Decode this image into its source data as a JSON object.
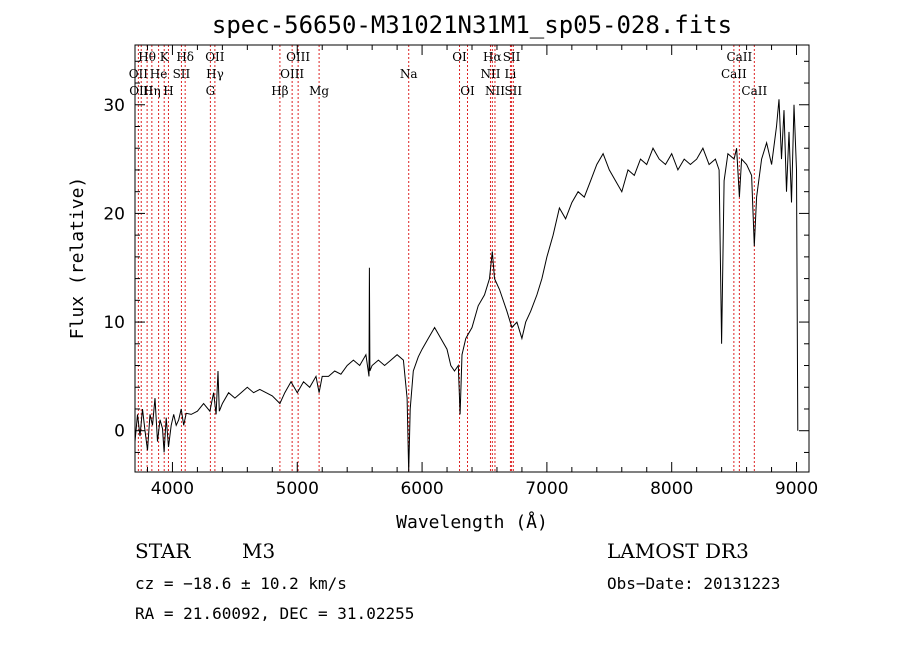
{
  "chart_data": {
    "type": "line",
    "title": "spec-56650-M31021N31M1_sp05-028.fits",
    "xlabel": "Wavelength (Å)",
    "ylabel": "Flux (relative)",
    "xlim": [
      3700,
      9100
    ],
    "ylim": [
      -3.8,
      35.5
    ],
    "xticks": [
      4000,
      5000,
      6000,
      7000,
      8000,
      9000
    ],
    "yticks": [
      0,
      10,
      20,
      30
    ],
    "grid": false,
    "series": [
      {
        "points": [
          [
            3700,
            -1.0
          ],
          [
            3720,
            1.5
          ],
          [
            3740,
            -0.5
          ],
          [
            3760,
            2.0
          ],
          [
            3780,
            0.0
          ],
          [
            3800,
            -1.8
          ],
          [
            3820,
            1.5
          ],
          [
            3840,
            0.5
          ],
          [
            3860,
            3.0
          ],
          [
            3880,
            -1.0
          ],
          [
            3900,
            1.0
          ],
          [
            3920,
            0.2
          ],
          [
            3933,
            -2.0
          ],
          [
            3950,
            1.2
          ],
          [
            3968,
            -1.5
          ],
          [
            3990,
            0.5
          ],
          [
            4010,
            1.5
          ],
          [
            4030,
            0.5
          ],
          [
            4050,
            1.0
          ],
          [
            4070,
            2.0
          ],
          [
            4090,
            0.5
          ],
          [
            4110,
            1.6
          ],
          [
            4150,
            1.5
          ],
          [
            4200,
            1.8
          ],
          [
            4250,
            2.5
          ],
          [
            4300,
            1.8
          ],
          [
            4330,
            3.5
          ],
          [
            4350,
            1.5
          ],
          [
            4365,
            5.5
          ],
          [
            4375,
            1.8
          ],
          [
            4400,
            2.5
          ],
          [
            4450,
            3.5
          ],
          [
            4500,
            3.0
          ],
          [
            4550,
            3.5
          ],
          [
            4600,
            4.0
          ],
          [
            4650,
            3.5
          ],
          [
            4700,
            3.8
          ],
          [
            4750,
            3.5
          ],
          [
            4800,
            3.2
          ],
          [
            4861,
            2.5
          ],
          [
            4900,
            3.5
          ],
          [
            4950,
            4.5
          ],
          [
            5000,
            3.5
          ],
          [
            5050,
            4.5
          ],
          [
            5100,
            4.0
          ],
          [
            5150,
            5.0
          ],
          [
            5175,
            3.5
          ],
          [
            5200,
            5.0
          ],
          [
            5250,
            5.0
          ],
          [
            5300,
            5.5
          ],
          [
            5350,
            5.2
          ],
          [
            5400,
            6.0
          ],
          [
            5450,
            6.5
          ],
          [
            5500,
            6.0
          ],
          [
            5550,
            7.0
          ],
          [
            5575,
            5.0
          ],
          [
            5578,
            15.0
          ],
          [
            5582,
            5.5
          ],
          [
            5600,
            6.0
          ],
          [
            5650,
            6.5
          ],
          [
            5700,
            6.0
          ],
          [
            5750,
            6.5
          ],
          [
            5800,
            7.0
          ],
          [
            5850,
            6.5
          ],
          [
            5880,
            3.0
          ],
          [
            5893,
            -3.8
          ],
          [
            5905,
            2.0
          ],
          [
            5930,
            5.5
          ],
          [
            5970,
            6.8
          ],
          [
            6000,
            7.5
          ],
          [
            6050,
            8.5
          ],
          [
            6100,
            9.5
          ],
          [
            6150,
            8.5
          ],
          [
            6200,
            7.5
          ],
          [
            6230,
            6.0
          ],
          [
            6260,
            5.5
          ],
          [
            6290,
            6.0
          ],
          [
            6305,
            1.5
          ],
          [
            6320,
            7.0
          ],
          [
            6350,
            8.5
          ],
          [
            6400,
            9.5
          ],
          [
            6450,
            11.5
          ],
          [
            6500,
            12.5
          ],
          [
            6540,
            14.0
          ],
          [
            6563,
            16.5
          ],
          [
            6580,
            14.0
          ],
          [
            6620,
            13.0
          ],
          [
            6680,
            11.0
          ],
          [
            6720,
            9.5
          ],
          [
            6760,
            10.0
          ],
          [
            6800,
            8.5
          ],
          [
            6830,
            10.0
          ],
          [
            6870,
            11.0
          ],
          [
            6920,
            12.5
          ],
          [
            6960,
            14.0
          ],
          [
            7000,
            16.0
          ],
          [
            7050,
            18.0
          ],
          [
            7100,
            20.5
          ],
          [
            7150,
            19.5
          ],
          [
            7200,
            21.0
          ],
          [
            7250,
            22.0
          ],
          [
            7300,
            21.5
          ],
          [
            7350,
            23.0
          ],
          [
            7400,
            24.5
          ],
          [
            7450,
            25.5
          ],
          [
            7500,
            24.0
          ],
          [
            7550,
            23.0
          ],
          [
            7600,
            22.0
          ],
          [
            7650,
            24.0
          ],
          [
            7700,
            23.5
          ],
          [
            7750,
            25.0
          ],
          [
            7800,
            24.5
          ],
          [
            7850,
            26.0
          ],
          [
            7900,
            25.0
          ],
          [
            7950,
            24.5
          ],
          [
            8000,
            25.5
          ],
          [
            8050,
            24.0
          ],
          [
            8100,
            25.0
          ],
          [
            8150,
            24.5
          ],
          [
            8200,
            25.0
          ],
          [
            8250,
            26.0
          ],
          [
            8300,
            24.5
          ],
          [
            8350,
            25.0
          ],
          [
            8380,
            24.0
          ],
          [
            8400,
            8.0
          ],
          [
            8420,
            23.0
          ],
          [
            8450,
            25.5
          ],
          [
            8500,
            25.0
          ],
          [
            8520,
            26.0
          ],
          [
            8542,
            21.5
          ],
          [
            8560,
            25.0
          ],
          [
            8600,
            24.5
          ],
          [
            8640,
            23.5
          ],
          [
            8662,
            17.0
          ],
          [
            8680,
            21.5
          ],
          [
            8720,
            25.0
          ],
          [
            8760,
            26.5
          ],
          [
            8800,
            24.5
          ],
          [
            8840,
            28.0
          ],
          [
            8860,
            30.5
          ],
          [
            8880,
            25.0
          ],
          [
            8900,
            29.5
          ],
          [
            8920,
            22.0
          ],
          [
            8940,
            27.5
          ],
          [
            8960,
            21.0
          ],
          [
            8980,
            30.0
          ],
          [
            9000,
            24.0
          ],
          [
            9010,
            0.0
          ]
        ]
      }
    ],
    "annotations": [
      {
        "label": "Hθ",
        "x": 3797,
        "row": 0
      },
      {
        "label": "Hη",
        "x": 3835,
        "row": 2
      },
      {
        "label": "K",
        "x": 3934,
        "row": 0
      },
      {
        "label": "Hδ",
        "x": 4102,
        "row": 0
      },
      {
        "label": "OII",
        "x": 4340,
        "row": 0
      },
      {
        "label": "Hγ",
        "x": 4341,
        "row": 1
      },
      {
        "label": "G",
        "x": 4304,
        "row": 2
      },
      {
        "label": "OIII",
        "x": 5007,
        "row": 0
      },
      {
        "label": "OIII",
        "x": 4959,
        "row": 1
      },
      {
        "label": "Hβ",
        "x": 4861,
        "row": 2
      },
      {
        "label": "Mg",
        "x": 5175,
        "row": 2
      },
      {
        "label": "Na",
        "x": 5893,
        "row": 1
      },
      {
        "label": "OI",
        "x": 6300,
        "row": 0
      },
      {
        "label": "OI",
        "x": 6364,
        "row": 2
      },
      {
        "label": "Hα",
        "x": 6563,
        "row": 0
      },
      {
        "label": "SII",
        "x": 6717,
        "row": 0
      },
      {
        "label": "NII",
        "x": 6548,
        "row": 1
      },
      {
        "label": "Li",
        "x": 6708,
        "row": 1
      },
      {
        "label": "NII",
        "x": 6584,
        "row": 2
      },
      {
        "label": "SII",
        "x": 6731,
        "row": 2
      },
      {
        "label": "OII",
        "x": 3727,
        "row": 1
      },
      {
        "label": "He",
        "x": 3889,
        "row": 1
      },
      {
        "label": "SII",
        "x": 4072,
        "row": 1
      },
      {
        "label": "OIII",
        "x": 3750,
        "row": 2
      },
      {
        "label": "H",
        "x": 3968,
        "row": 2
      },
      {
        "label": "CaII",
        "x": 8542,
        "row": 0
      },
      {
        "label": "CaII",
        "x": 8498,
        "row": 1
      },
      {
        "label": "CaII",
        "x": 8662,
        "row": 2
      }
    ],
    "reference_lines": [
      3727,
      3750,
      3797,
      3835,
      3889,
      3934,
      3968,
      4072,
      4102,
      4304,
      4340,
      4861,
      4959,
      5007,
      5175,
      5893,
      6300,
      6364,
      6548,
      6563,
      6584,
      6708,
      6717,
      6731,
      8498,
      8542,
      8662
    ]
  },
  "info": {
    "object_class": "STAR",
    "subclass": "M3",
    "survey": "LAMOST DR3",
    "redshift": "cz = −18.6 ± 10.2 km/s",
    "obs_date": "Obs−Date: 20131223",
    "coords": "RA =  21.60092, DEC =  31.02255"
  }
}
